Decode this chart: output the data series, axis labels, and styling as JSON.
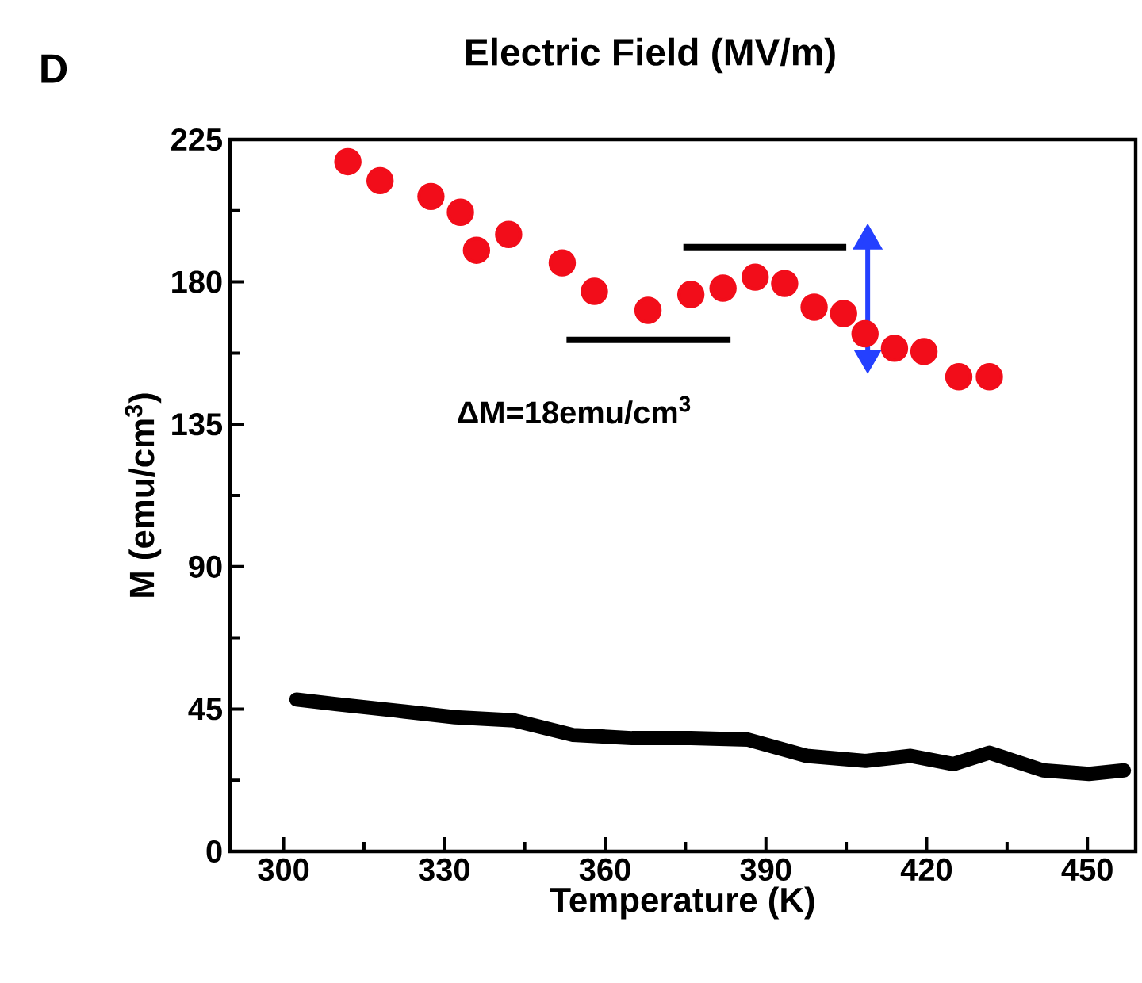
{
  "chart_data": {
    "type": "scatter",
    "title": "Electric Field (MV/m)",
    "xlabel": "Temperature (K)",
    "ylabel": "M (emu/cm$^{3}$)",
    "annotations": [
      "D",
      "ΔM=18emu/cm$^{3}$"
    ],
    "xlim": [
      290,
      459
    ],
    "ylim": [
      0,
      225
    ],
    "xticks": [
      300,
      {
        "value": 315,
        "label": null
      },
      330,
      {
        "value": 345,
        "label": null
      },
      360,
      {
        "value": 375,
        "label": null
      },
      390,
      {
        "value": 405,
        "label": null
      },
      420,
      {
        "value": 435,
        "label": null
      },
      450
    ],
    "yticks": [
      0,
      {
        "value": 22.5,
        "label": null
      },
      45,
      {
        "value": 67.5,
        "label": null
      },
      90,
      {
        "value": 112.5,
        "label": null
      },
      135,
      {
        "value": 157.5,
        "label": null
      },
      180,
      {
        "value": 202.5,
        "label": null
      },
      225
    ],
    "grid": false,
    "series": [
      {
        "marker": "circle",
        "color": "#f20d1a",
        "x": [
          312,
          318,
          327.5,
          333,
          336,
          342,
          352,
          358,
          368,
          376,
          382,
          388,
          393.5,
          399,
          404.5,
          408.5,
          414,
          419.5,
          426,
          431.7
        ],
        "values": [
          218,
          212,
          207,
          202,
          190,
          195,
          186,
          177,
          171,
          176,
          178,
          181.5,
          179.5,
          172,
          170,
          163.6,
          159,
          158,
          150,
          150
        ]
      },
      {
        "type": "line",
        "color": "#000000",
        "x": [
          302.4,
          310,
          321,
          332,
          343,
          354,
          365,
          376,
          386.7,
          397.6,
          408.6,
          417,
          425,
          431.7,
          441.7,
          450.3,
          456.8
        ],
        "values": [
          48,
          46.5,
          44.5,
          42.4,
          41.4,
          36.8,
          35.8,
          35.8,
          35.3,
          30.2,
          28.6,
          30.2,
          27.6,
          31.2,
          25.6,
          24.5,
          25.6
        ]
      },
      {
        "type": "line",
        "color": "#000000",
        "x": [
          374.6,
          405
        ],
        "values": [
          191,
          191
        ]
      },
      {
        "type": "line",
        "color": "#000000",
        "x": [
          352.8,
          383.4
        ],
        "values": [
          161.7,
          161.7
        ]
      },
      {
        "type": "line",
        "marker": "triangle",
        "color": "#2440ff",
        "x": [
          409,
          409
        ],
        "values": [
          193,
          156
        ]
      }
    ]
  }
}
